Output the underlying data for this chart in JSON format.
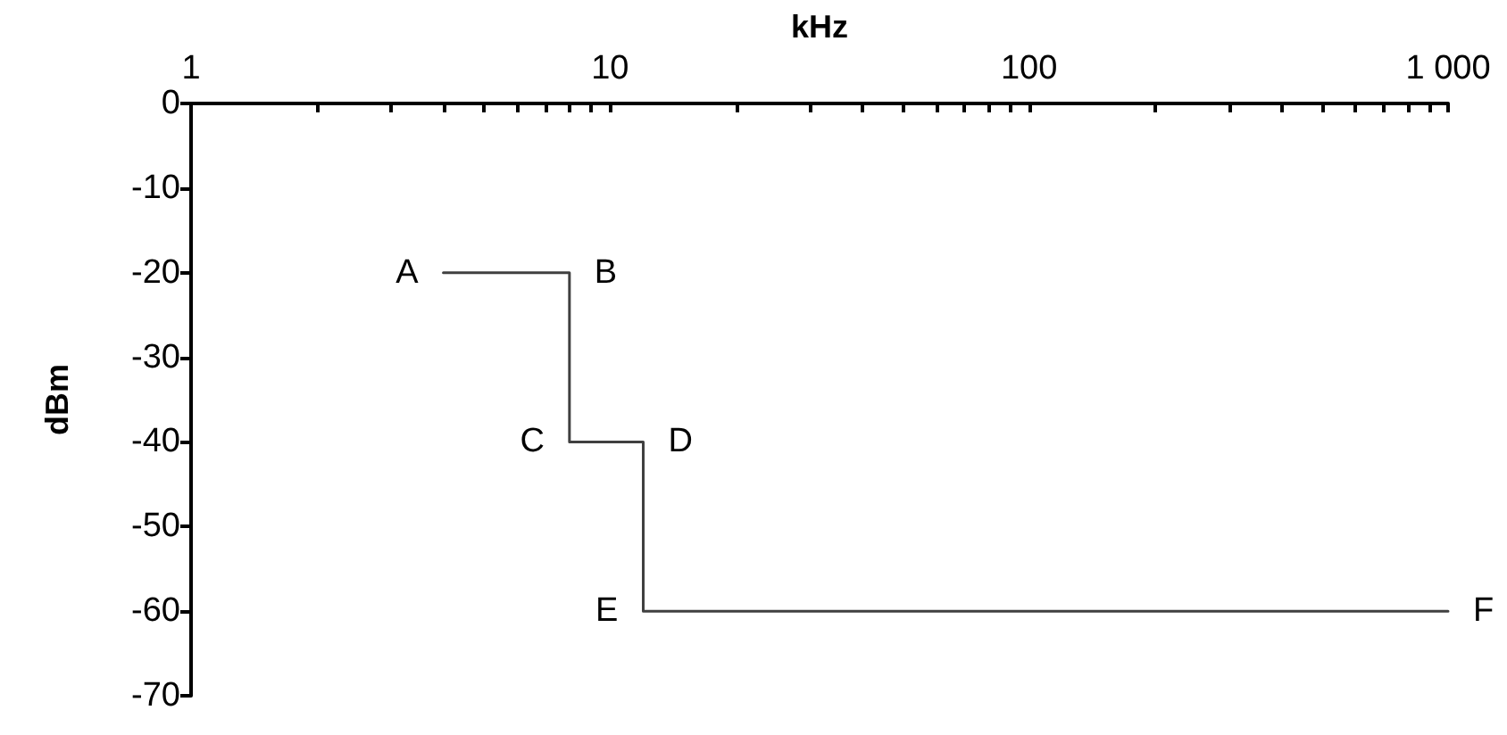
{
  "chart_data": {
    "type": "line",
    "xlabel": "kHz",
    "ylabel": "dBm",
    "log": "x",
    "x": [
      4,
      8,
      8,
      12,
      12,
      1000
    ],
    "series": [
      {
        "color": "#404040",
        "values": [
          -20,
          -20,
          -40,
          -40,
          -60,
          -60
        ]
      }
    ],
    "xlim": [
      1,
      1000
    ],
    "xticks": [
      1,
      {
        "value": 2,
        "label": null
      },
      {
        "value": 3,
        "label": null
      },
      {
        "value": 4,
        "label": null
      },
      {
        "value": 5,
        "label": null
      },
      {
        "value": 6,
        "label": null
      },
      {
        "value": 7,
        "label": null
      },
      {
        "value": 8,
        "label": null
      },
      {
        "value": 9,
        "label": null
      },
      10,
      {
        "value": 20,
        "label": null
      },
      {
        "value": 30,
        "label": null
      },
      {
        "value": 40,
        "label": null
      },
      {
        "value": 50,
        "label": null
      },
      {
        "value": 60,
        "label": null
      },
      {
        "value": 70,
        "label": null
      },
      {
        "value": 80,
        "label": null
      },
      {
        "value": 90,
        "label": null
      },
      100,
      {
        "value": 200,
        "label": null
      },
      {
        "value": 300,
        "label": null
      },
      {
        "value": 400,
        "label": null
      },
      {
        "value": 500,
        "label": null
      },
      {
        "value": 600,
        "label": null
      },
      {
        "value": 700,
        "label": null
      },
      {
        "value": 800,
        "label": null
      },
      {
        "value": 900,
        "label": null
      },
      {
        "value": 1000,
        "label": "1 000"
      }
    ],
    "ylim": [
      -70,
      0
    ],
    "yticks": [
      -70,
      -60,
      -50,
      -40,
      -30,
      -20,
      -10,
      0
    ],
    "grid": false,
    "marker": "none",
    "line_style": "solid",
    "annotations": [
      {
        "text": "A",
        "x": 4,
        "y": -20
      },
      {
        "text": "B",
        "x": 8,
        "y": -20
      },
      {
        "text": "C",
        "x": 8,
        "y": -40
      },
      {
        "text": "D",
        "x": 12,
        "y": -40
      },
      {
        "text": "E",
        "x": 12,
        "y": -60
      },
      {
        "text": "F",
        "x": 1000,
        "y": -60
      }
    ]
  }
}
